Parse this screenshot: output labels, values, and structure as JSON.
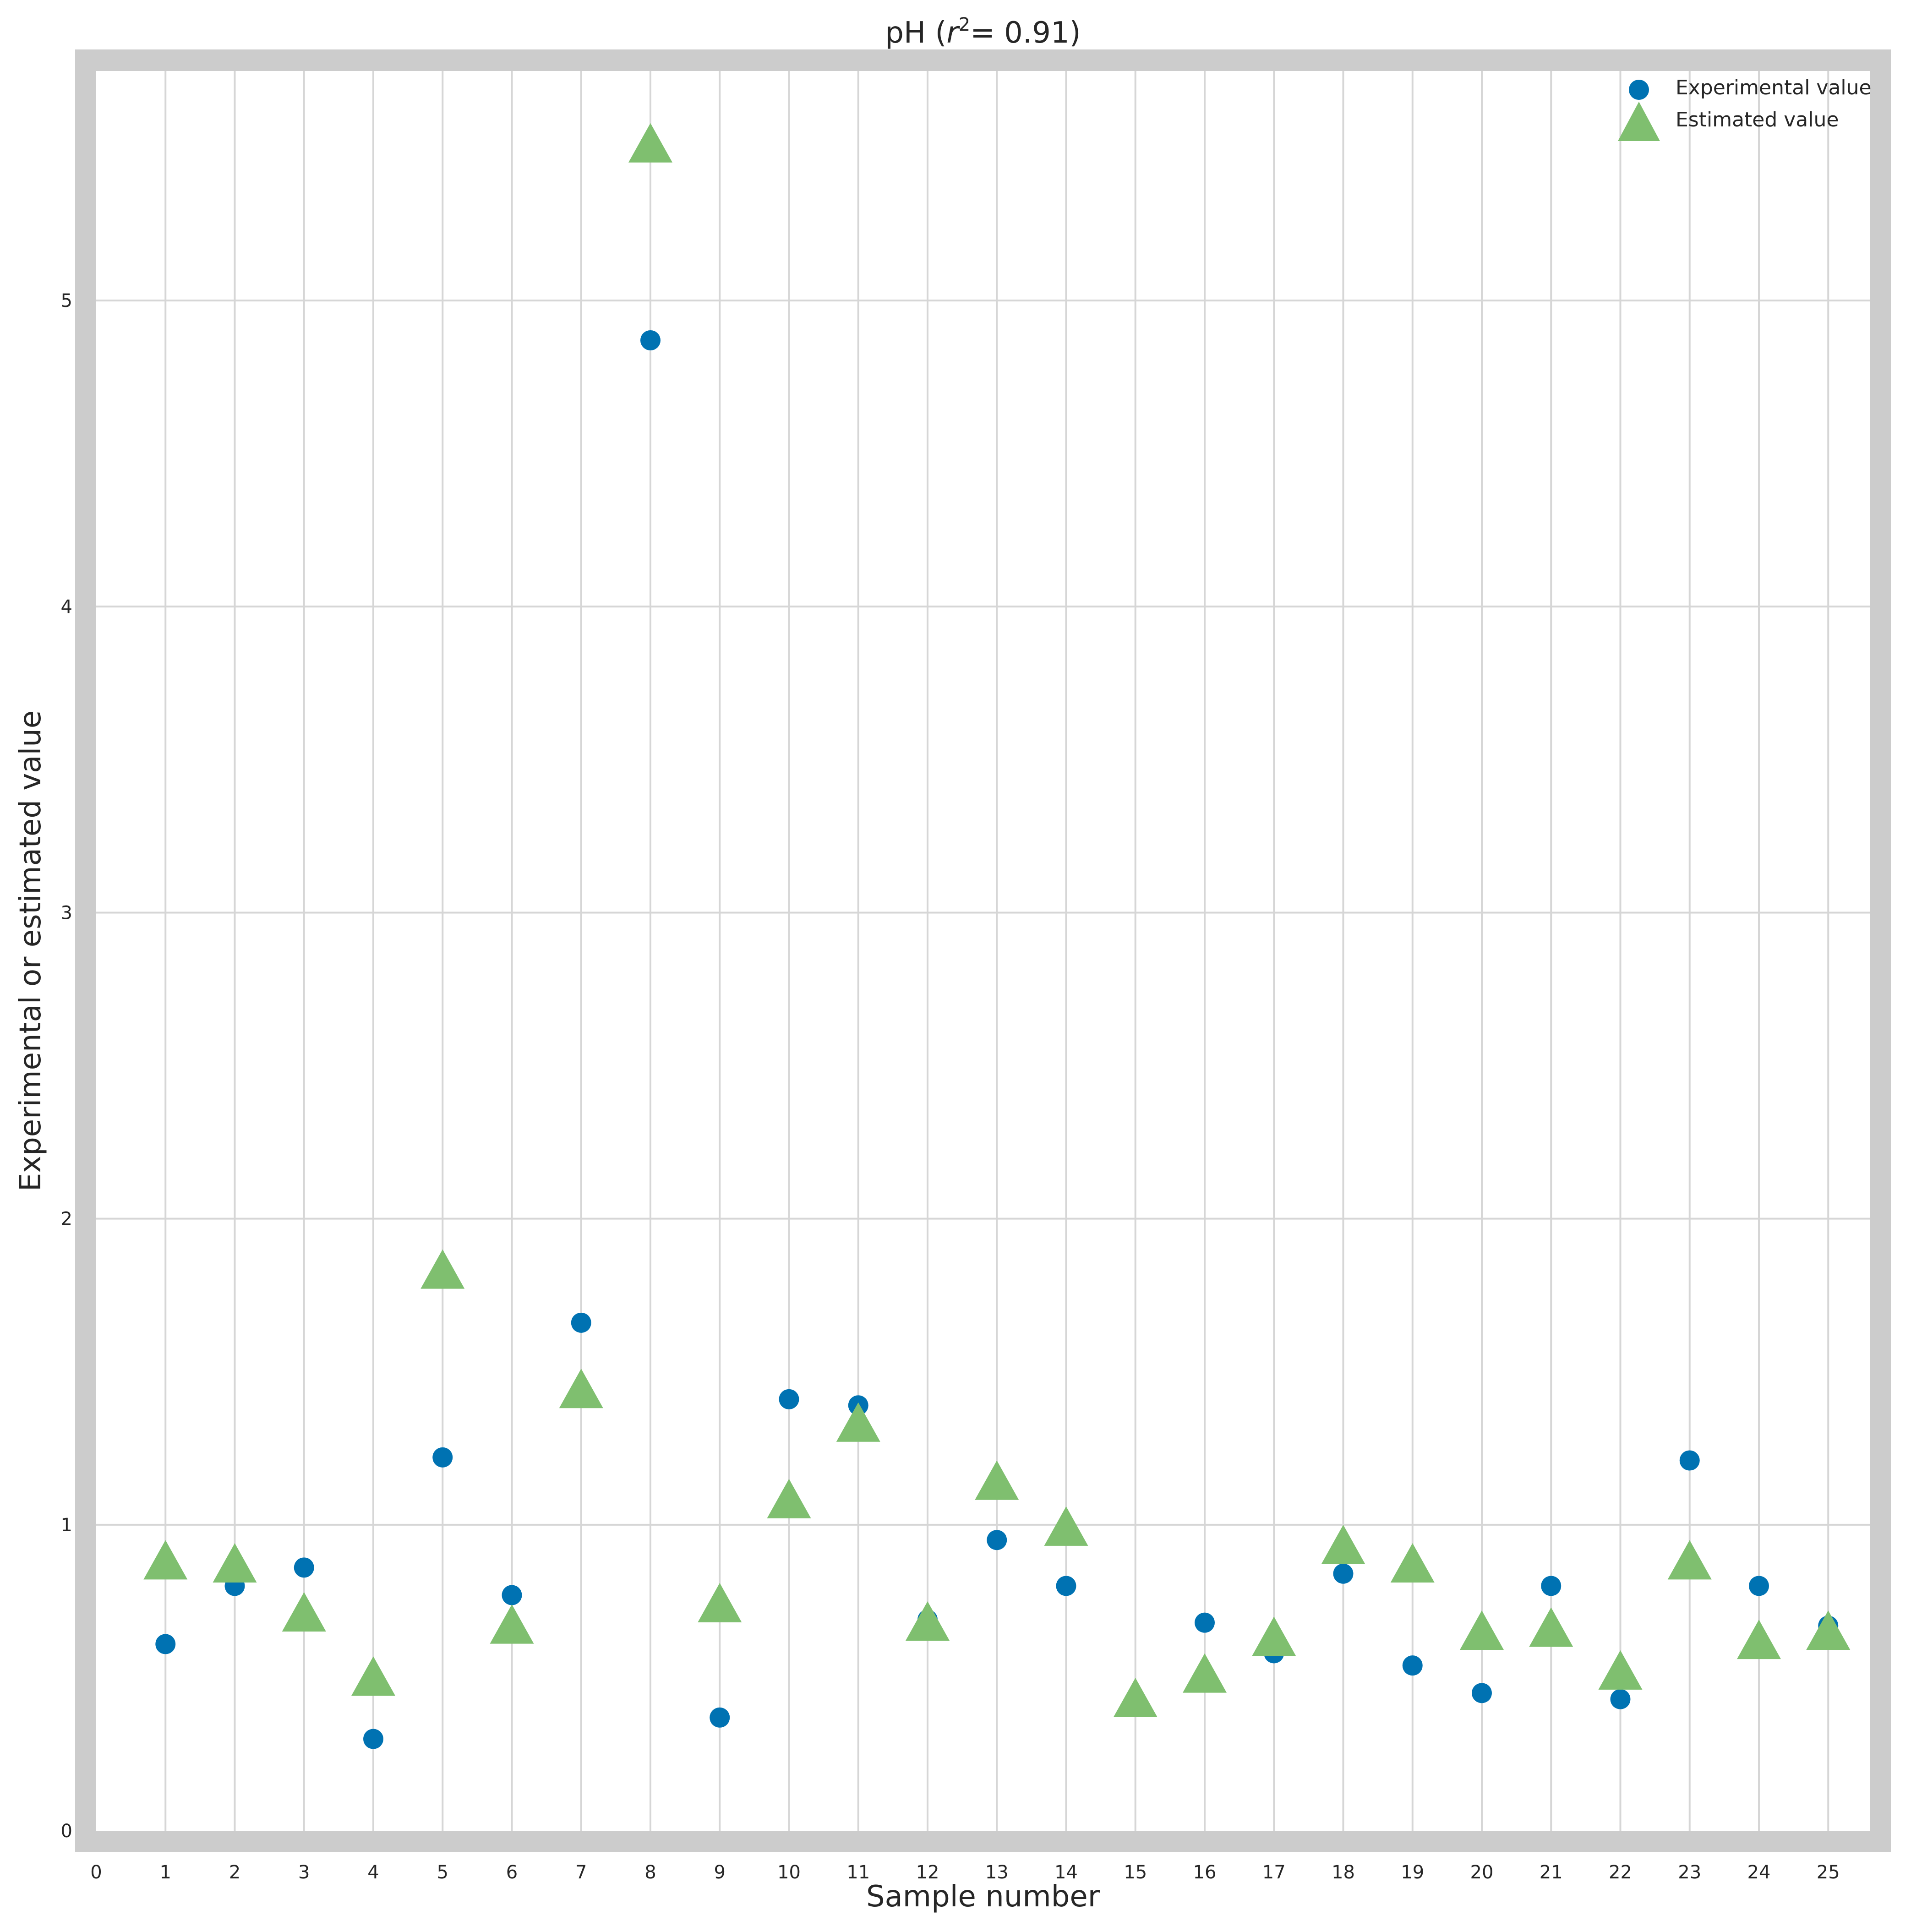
{
  "chart_data": {
    "type": "scatter",
    "title": {
      "prefix": "pH (",
      "variable": "r",
      "superscript": "2",
      "suffix": "= 0.91)"
    },
    "xlabel": "Sample number",
    "ylabel": "Experimental or estimated value",
    "xlim": [
      0,
      25.6
    ],
    "ylim": [
      0,
      5.75
    ],
    "xticks": [
      "0",
      "1",
      "2",
      "3",
      "4",
      "5",
      "6",
      "7",
      "8",
      "9",
      "10",
      "11",
      "12",
      "13",
      "14",
      "15",
      "16",
      "17",
      "18",
      "19",
      "20",
      "21",
      "22",
      "23",
      "24",
      "25"
    ],
    "yticks": [
      "0",
      "1",
      "2",
      "3",
      "4",
      "5"
    ],
    "grid": true,
    "legend_position": "top-right",
    "series": [
      {
        "name": "Experimental value",
        "marker": "circle",
        "color": "#0072b2",
        "x": [
          1,
          2,
          3,
          4,
          5,
          6,
          7,
          8,
          9,
          10,
          11,
          12,
          13,
          14,
          15,
          16,
          17,
          18,
          19,
          20,
          21,
          22,
          23,
          24,
          25
        ],
        "values": [
          0.61,
          0.8,
          0.86,
          0.3,
          1.22,
          0.77,
          1.66,
          4.87,
          0.37,
          1.41,
          1.39,
          0.69,
          0.95,
          0.8,
          0.42,
          0.68,
          0.58,
          0.84,
          0.54,
          0.45,
          0.8,
          0.43,
          1.21,
          0.8,
          0.67
        ]
      },
      {
        "name": "Estimated value",
        "marker": "triangle",
        "color": "#7fbf6f",
        "x": [
          1,
          2,
          3,
          4,
          5,
          6,
          7,
          8,
          9,
          10,
          11,
          12,
          13,
          14,
          15,
          16,
          17,
          18,
          19,
          20,
          21,
          22,
          23,
          24,
          25
        ],
        "values": [
          0.87,
          0.86,
          0.7,
          0.49,
          1.82,
          0.66,
          1.43,
          5.5,
          0.73,
          1.07,
          1.32,
          0.67,
          1.13,
          0.98,
          0.42,
          0.5,
          0.62,
          0.92,
          0.86,
          0.64,
          0.65,
          0.51,
          0.87,
          0.61,
          0.64
        ]
      }
    ]
  }
}
